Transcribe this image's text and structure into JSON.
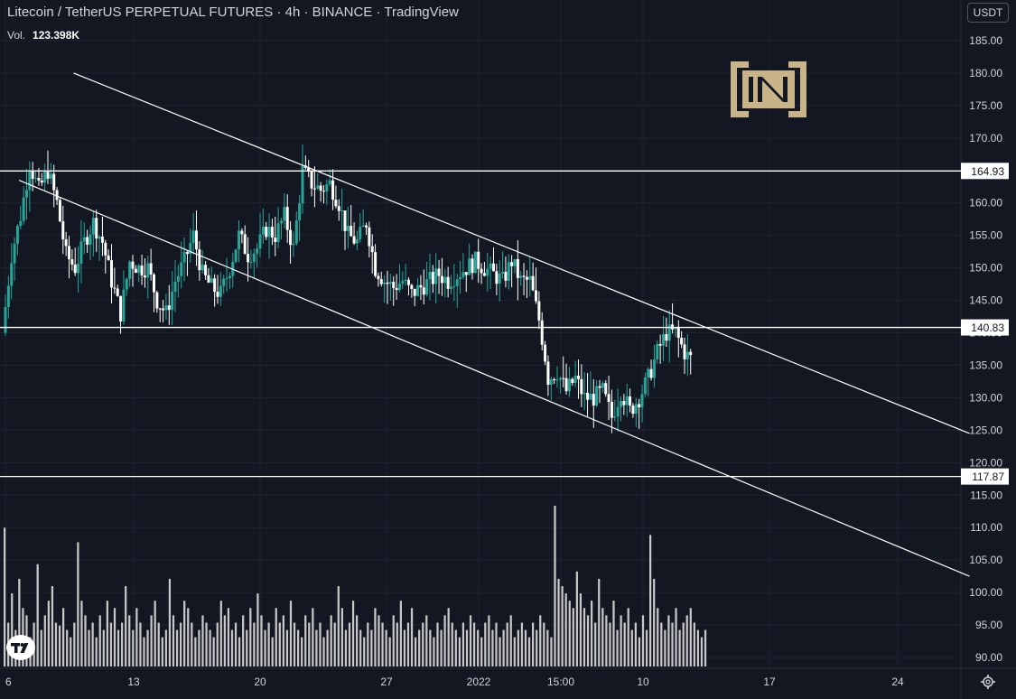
{
  "header": {
    "symbol_title": "Litecoin / TetherUS PERPETUAL FUTURES · 4h · BINANCE · TradingView",
    "volume_label": "Vol.",
    "volume_value": "123.398K",
    "currency": "USDT"
  },
  "icons": {
    "brand_logo": "beincrypto-in-logo",
    "watermark": "tradingview-logo",
    "settings": "gear-icon"
  },
  "colors": {
    "background": "#131722",
    "grid": "#1e2330",
    "text": "#d1d4dc",
    "candle_up": "#26a69a",
    "candle_down": "#ffffff",
    "volume": "#c8c8c8",
    "lines": "#ffffff",
    "logo": "#c9b48a"
  },
  "chart_data": {
    "type": "candlestick",
    "title": "Litecoin / TetherUS PERPETUAL FUTURES",
    "timeframe": "4h",
    "exchange": "BINANCE",
    "ylim": [
      88,
      187
    ],
    "y_ticks": [
      90,
      95,
      100,
      105,
      110,
      115,
      120,
      125,
      130,
      135,
      140,
      145,
      150,
      155,
      160,
      165,
      170,
      175,
      180,
      185
    ],
    "x_ticks": [
      "6",
      "13",
      "20",
      "27",
      "2022",
      "15:00",
      "10",
      "17",
      "24"
    ],
    "horizontal_levels": [
      "164.93",
      "140.83",
      "117.87"
    ],
    "channel_lines": [
      {
        "name": "upper",
        "points": [
          [
            "Dec 9",
            180
          ],
          [
            "Jan 24",
            124.5
          ]
        ]
      },
      {
        "name": "lower",
        "points": [
          [
            "Dec 6",
            163.5
          ],
          [
            "Jan 24",
            102.5
          ]
        ]
      }
    ],
    "price_path": [
      [
        0,
        140
      ],
      [
        0.5,
        152
      ],
      [
        1,
        158
      ],
      [
        1.5,
        166
      ],
      [
        2,
        162
      ],
      [
        2.5,
        165
      ],
      [
        3,
        160
      ],
      [
        3.5,
        152
      ],
      [
        4,
        150
      ],
      [
        4.5,
        154
      ],
      [
        5,
        157
      ],
      [
        5.5,
        154
      ],
      [
        6,
        148
      ],
      [
        6.5,
        143
      ],
      [
        7,
        151
      ],
      [
        7.5,
        150
      ],
      [
        8,
        150
      ],
      [
        8.5,
        145
      ],
      [
        9,
        143
      ],
      [
        9.5,
        148
      ],
      [
        10,
        151
      ],
      [
        10.5,
        155
      ],
      [
        11,
        149
      ],
      [
        11.5,
        147
      ],
      [
        12,
        146
      ],
      [
        12.5,
        150
      ],
      [
        13,
        155
      ],
      [
        13.5,
        152
      ],
      [
        14,
        153
      ],
      [
        14.5,
        156
      ],
      [
        15,
        155
      ],
      [
        15.5,
        158
      ],
      [
        16,
        153
      ],
      [
        16.5,
        165
      ],
      [
        17,
        163
      ],
      [
        17.5,
        162
      ],
      [
        18,
        163
      ],
      [
        18.5,
        160
      ],
      [
        19,
        155
      ],
      [
        19.5,
        154
      ],
      [
        20,
        157
      ],
      [
        20.5,
        150
      ],
      [
        21,
        148
      ],
      [
        21.5,
        147
      ],
      [
        22,
        148
      ],
      [
        22.5,
        146
      ],
      [
        23,
        147
      ],
      [
        23.5,
        148
      ],
      [
        24,
        149
      ],
      [
        24.5,
        148
      ],
      [
        25,
        149
      ],
      [
        25.5,
        150
      ],
      [
        26,
        151
      ],
      [
        26.5,
        150
      ],
      [
        27,
        149
      ],
      [
        27.5,
        148
      ],
      [
        28,
        151
      ],
      [
        28.5,
        148
      ],
      [
        29,
        148
      ],
      [
        29.5,
        142
      ],
      [
        29.8,
        137
      ],
      [
        30,
        133
      ],
      [
        30.5,
        134
      ],
      [
        31,
        131
      ],
      [
        31.5,
        133
      ],
      [
        32,
        130
      ],
      [
        32.5,
        130
      ],
      [
        33,
        131
      ],
      [
        33.5,
        127
      ],
      [
        34,
        131
      ],
      [
        34.5,
        128
      ],
      [
        35,
        130
      ],
      [
        35.5,
        133
      ],
      [
        36,
        137
      ],
      [
        36.5,
        140
      ],
      [
        37,
        140
      ],
      [
        37.5,
        137
      ],
      [
        37.8,
        136
      ]
    ],
    "volume_ylim": [
      0,
      110
    ],
    "volume_bars": [
      95,
      30,
      50,
      25,
      60,
      40,
      35,
      20,
      30,
      70,
      25,
      35,
      45,
      55,
      30,
      28,
      40,
      25,
      20,
      30,
      85,
      45,
      35,
      25,
      30,
      20,
      35,
      25,
      45,
      30,
      40,
      25,
      30,
      55,
      35,
      25,
      40,
      30,
      20,
      25,
      35,
      45,
      30,
      20,
      25,
      60,
      35,
      25,
      30,
      45,
      40,
      30,
      20,
      25,
      35,
      30,
      25,
      20,
      30,
      45,
      35,
      40,
      25,
      30,
      20,
      35,
      25,
      40,
      30,
      50,
      35,
      25,
      30,
      20,
      40,
      30,
      35,
      25,
      45,
      30,
      25,
      20,
      35,
      30,
      40,
      25,
      30,
      20,
      25,
      35,
      30,
      55,
      40,
      25,
      30,
      45,
      35,
      25,
      20,
      30,
      25,
      40,
      35,
      30,
      25,
      20,
      35,
      30,
      45,
      25,
      30,
      40,
      20,
      25,
      30,
      35,
      25,
      20,
      30,
      25,
      35,
      40,
      30,
      25,
      20,
      30,
      25,
      35,
      30,
      25,
      20,
      30,
      35,
      25,
      30,
      20,
      25,
      30,
      35,
      20,
      25,
      30,
      25,
      20,
      30,
      25,
      35,
      30,
      25,
      20,
      110,
      60,
      55,
      50,
      45,
      40,
      65,
      50,
      40,
      35,
      45,
      30,
      60,
      40,
      35,
      30,
      45,
      25,
      35,
      30,
      40,
      25,
      30,
      20,
      35,
      25,
      90,
      60,
      40,
      30,
      25,
      35,
      30,
      40,
      25,
      30,
      35,
      40,
      30,
      25,
      20,
      25
    ]
  }
}
